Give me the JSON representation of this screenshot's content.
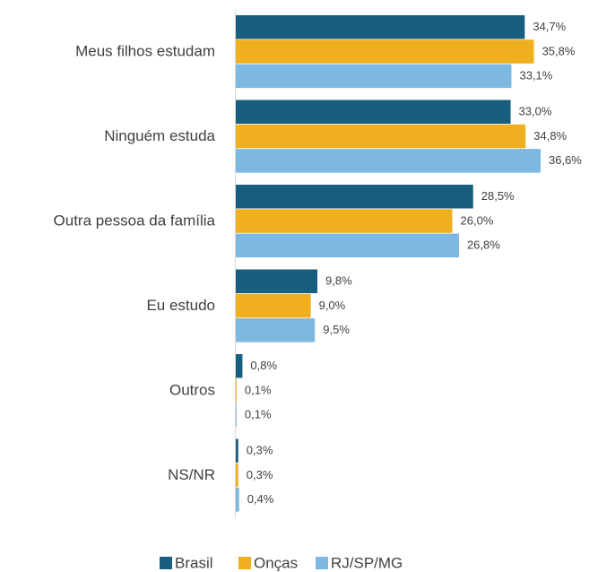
{
  "chart_data": {
    "type": "bar",
    "orientation": "horizontal",
    "categories": [
      "Meus filhos estudam",
      "Ninguém estuda",
      "Outra pessoa da família",
      "Eu estudo",
      "Outros",
      "NS/NR"
    ],
    "series": [
      {
        "name": "Brasil",
        "color": "#175e7f",
        "values": [
          34.7,
          33.0,
          28.5,
          9.8,
          0.8,
          0.3
        ],
        "value_labels": [
          "34,7%",
          "33,0%",
          "28,5%",
          "9,8%",
          "0,8%",
          "0,3%"
        ]
      },
      {
        "name": "Onças",
        "color": "#f0af1e",
        "values": [
          35.8,
          34.8,
          26.0,
          9.0,
          0.1,
          0.3
        ],
        "value_labels": [
          "35,8%",
          "34,8%",
          "26,0%",
          "9,0%",
          "0,1%",
          "0,3%"
        ]
      },
      {
        "name": "RJ/SP/MG",
        "color": "#7db8e1",
        "values": [
          33.1,
          36.6,
          26.8,
          9.5,
          0.1,
          0.4
        ],
        "value_labels": [
          "33,1%",
          "36,6%",
          "26,8%",
          "9,5%",
          "0,1%",
          "0,4%"
        ]
      }
    ],
    "legend": "bottom"
  }
}
